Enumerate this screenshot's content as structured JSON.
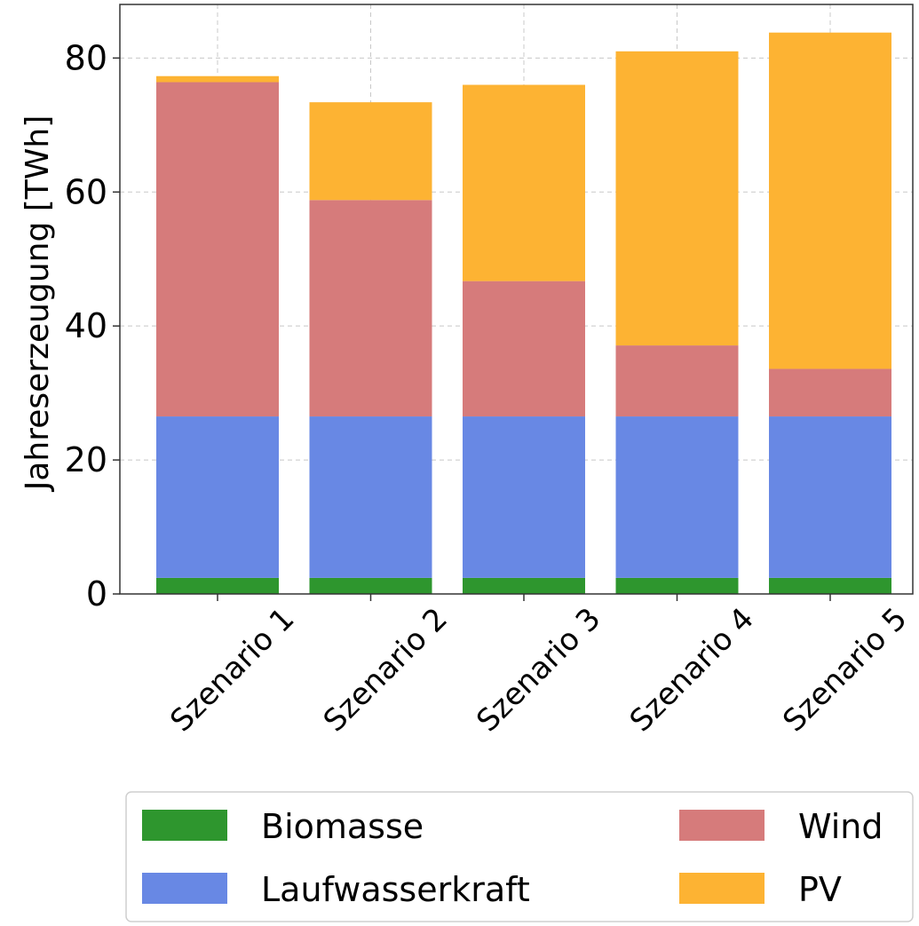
{
  "chart_data": {
    "type": "bar",
    "stacked": true,
    "categories": [
      "Szenario 1",
      "Szenario 2",
      "Szenario 3",
      "Szenario 4",
      "Szenario 5"
    ],
    "series": [
      {
        "name": "Biomasse",
        "color": "#2e962e",
        "values": [
          2.4,
          2.4,
          2.4,
          2.4,
          2.4
        ]
      },
      {
        "name": "Laufwasserkraft",
        "color": "#6888e4",
        "values": [
          24.1,
          24.1,
          24.1,
          24.1,
          24.1
        ]
      },
      {
        "name": "Wind",
        "color": "#d67b7b",
        "values": [
          49.9,
          32.3,
          20.2,
          10.6,
          7.1
        ]
      },
      {
        "name": "PV",
        "color": "#fdb333",
        "values": [
          0.9,
          14.6,
          29.3,
          43.9,
          50.2
        ]
      }
    ],
    "ylabel": "Jahreserzeugung [TWh]",
    "xlabel": "",
    "ylim": [
      0,
      88
    ],
    "yticks": [
      "0",
      "20",
      "40",
      "60",
      "80"
    ],
    "grid": true,
    "legend": {
      "placement": "bottom",
      "columns": 2
    }
  }
}
